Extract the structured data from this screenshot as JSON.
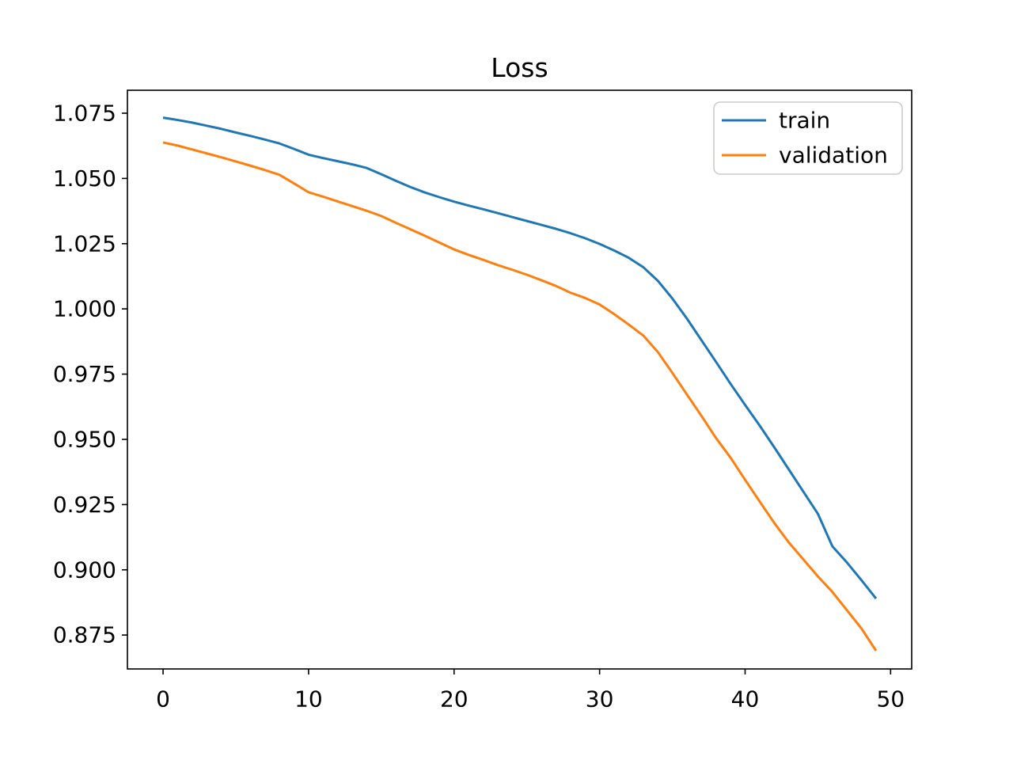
{
  "chart_data": {
    "type": "line",
    "title": "Loss",
    "xlabel": "",
    "ylabel": "",
    "grid": false,
    "legend_position": "upper right",
    "xlim": [
      -2.45,
      51.45
    ],
    "ylim": [
      0.862,
      1.0838
    ],
    "x_ticks": [
      0,
      10,
      20,
      30,
      40,
      50
    ],
    "y_ticks": [
      0.875,
      0.9,
      0.925,
      0.95,
      0.975,
      1.0,
      1.025,
      1.05,
      1.075
    ],
    "y_tick_labels": [
      "0.875",
      "0.900",
      "0.925",
      "0.950",
      "0.975",
      "1.000",
      "1.025",
      "1.050",
      "1.075"
    ],
    "x": [
      0,
      1,
      2,
      3,
      4,
      5,
      6,
      7,
      8,
      9,
      10,
      11,
      12,
      13,
      14,
      15,
      16,
      17,
      18,
      19,
      20,
      21,
      22,
      23,
      24,
      25,
      26,
      27,
      28,
      29,
      30,
      31,
      32,
      33,
      34,
      35,
      36,
      37,
      38,
      39,
      40,
      41,
      42,
      43,
      44,
      45,
      46,
      47,
      48,
      49
    ],
    "series": [
      {
        "name": "train",
        "color": "#1f77b4",
        "values": [
          1.0733,
          1.0724,
          1.0714,
          1.0702,
          1.069,
          1.0676,
          1.0663,
          1.0649,
          1.0634,
          1.0613,
          1.0591,
          1.0578,
          1.0566,
          1.0554,
          1.054,
          1.0516,
          1.0491,
          1.0467,
          1.0446,
          1.0428,
          1.0411,
          1.0396,
          1.0382,
          1.0367,
          1.0352,
          1.0337,
          1.0322,
          1.0307,
          1.029,
          1.0271,
          1.0249,
          1.0224,
          1.0196,
          1.016,
          1.0108,
          1.004,
          0.9963,
          0.988,
          0.9797,
          0.9713,
          0.9632,
          0.9553,
          0.947,
          0.9385,
          0.93,
          0.9215,
          0.909,
          0.9028,
          0.896,
          0.889
        ]
      },
      {
        "name": "validation",
        "color": "#ff7f0e",
        "values": [
          1.0638,
          1.0626,
          1.0611,
          1.0596,
          1.0581,
          1.0565,
          1.0549,
          1.0532,
          1.0514,
          1.0481,
          1.0447,
          1.043,
          1.0412,
          1.0394,
          1.0376,
          1.0356,
          1.033,
          1.0305,
          1.028,
          1.0254,
          1.0228,
          1.0207,
          1.0188,
          1.0168,
          1.015,
          1.0131,
          1.011,
          1.0088,
          1.0062,
          1.0042,
          1.0017,
          0.998,
          0.994,
          0.9898,
          0.9835,
          0.9755,
          0.9672,
          0.959,
          0.9505,
          0.943,
          0.9345,
          0.9262,
          0.918,
          0.9105,
          0.904,
          0.8975,
          0.8915,
          0.8845,
          0.8775,
          0.869
        ]
      }
    ],
    "style": {
      "spine_color": "#000000",
      "background": "#ffffff",
      "legend_border": "#cccccc",
      "line_width": 3
    }
  }
}
